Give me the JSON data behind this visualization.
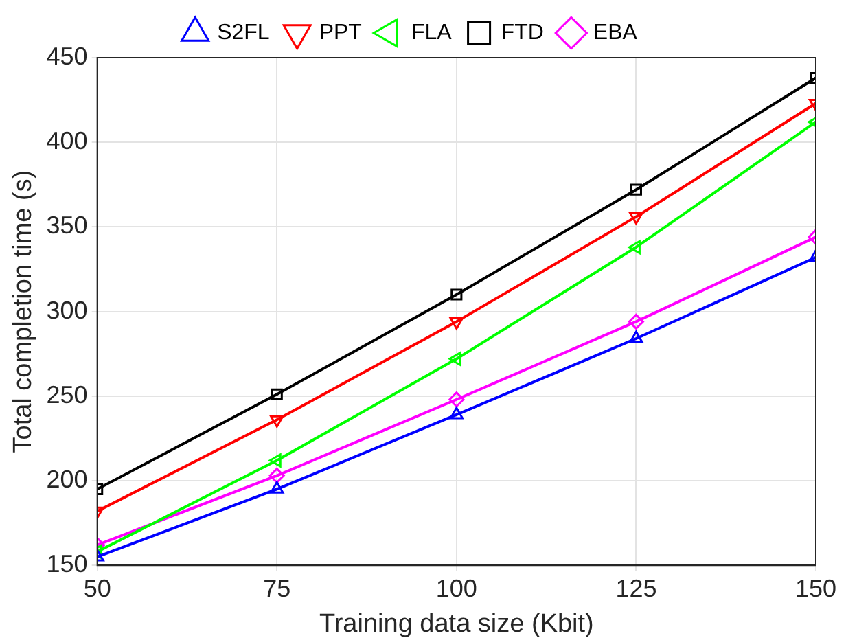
{
  "chart_data": {
    "type": "line",
    "xlabel": "Training data size (Kbit)",
    "ylabel": "Total completion time (s)",
    "x": [
      50,
      75,
      100,
      125,
      150
    ],
    "xlim": [
      50,
      150
    ],
    "xticks": [
      50,
      75,
      100,
      125,
      150
    ],
    "ylim": [
      150,
      450
    ],
    "yticks": [
      150,
      200,
      250,
      300,
      350,
      400,
      450
    ],
    "grid": true,
    "legend": "top",
    "line_style": "solid",
    "series": [
      {
        "name": "S2FL",
        "color": "#0000ff",
        "marker": "triangle",
        "values": [
          155,
          195,
          239,
          284,
          332
        ]
      },
      {
        "name": "PPT",
        "color": "#ff0000",
        "marker": "triangle-down",
        "values": [
          182,
          236,
          294,
          356,
          423
        ]
      },
      {
        "name": "FLA",
        "color": "#00ff00",
        "marker": "triangle-left",
        "values": [
          158,
          212,
          272,
          338,
          412
        ]
      },
      {
        "name": "FTD",
        "color": "#000000",
        "marker": "square",
        "values": [
          195,
          251,
          310,
          372,
          438
        ]
      },
      {
        "name": "EBA",
        "color": "#ff00ff",
        "marker": "diamond",
        "values": [
          162,
          203,
          248,
          294,
          344
        ]
      }
    ]
  }
}
